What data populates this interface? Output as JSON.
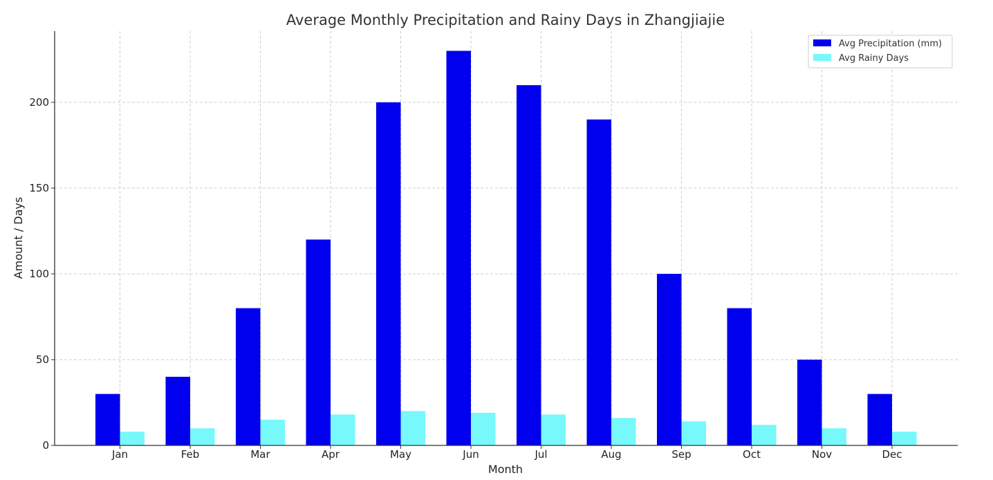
{
  "chart_data": {
    "type": "bar",
    "title": "Average Monthly Precipitation and Rainy Days in Zhangjiajie",
    "xlabel": "Month",
    "ylabel": "Amount / Days",
    "categories": [
      "Jan",
      "Feb",
      "Mar",
      "Apr",
      "May",
      "Jun",
      "Jul",
      "Aug",
      "Sep",
      "Oct",
      "Nov",
      "Dec"
    ],
    "series": [
      {
        "name": "Avg Precipitation (mm)",
        "color": "#0000ee",
        "values": [
          30,
          40,
          80,
          120,
          200,
          230,
          210,
          190,
          100,
          80,
          50,
          30
        ]
      },
      {
        "name": "Avg Rainy Days",
        "color": "#77f8fb",
        "values": [
          8,
          10,
          15,
          18,
          20,
          19,
          18,
          16,
          14,
          12,
          10,
          8
        ]
      }
    ],
    "ylim": [
      0,
      241.5
    ],
    "yticks": [
      0,
      50,
      100,
      150,
      200
    ],
    "grid": true,
    "legend_position": "top-right"
  }
}
